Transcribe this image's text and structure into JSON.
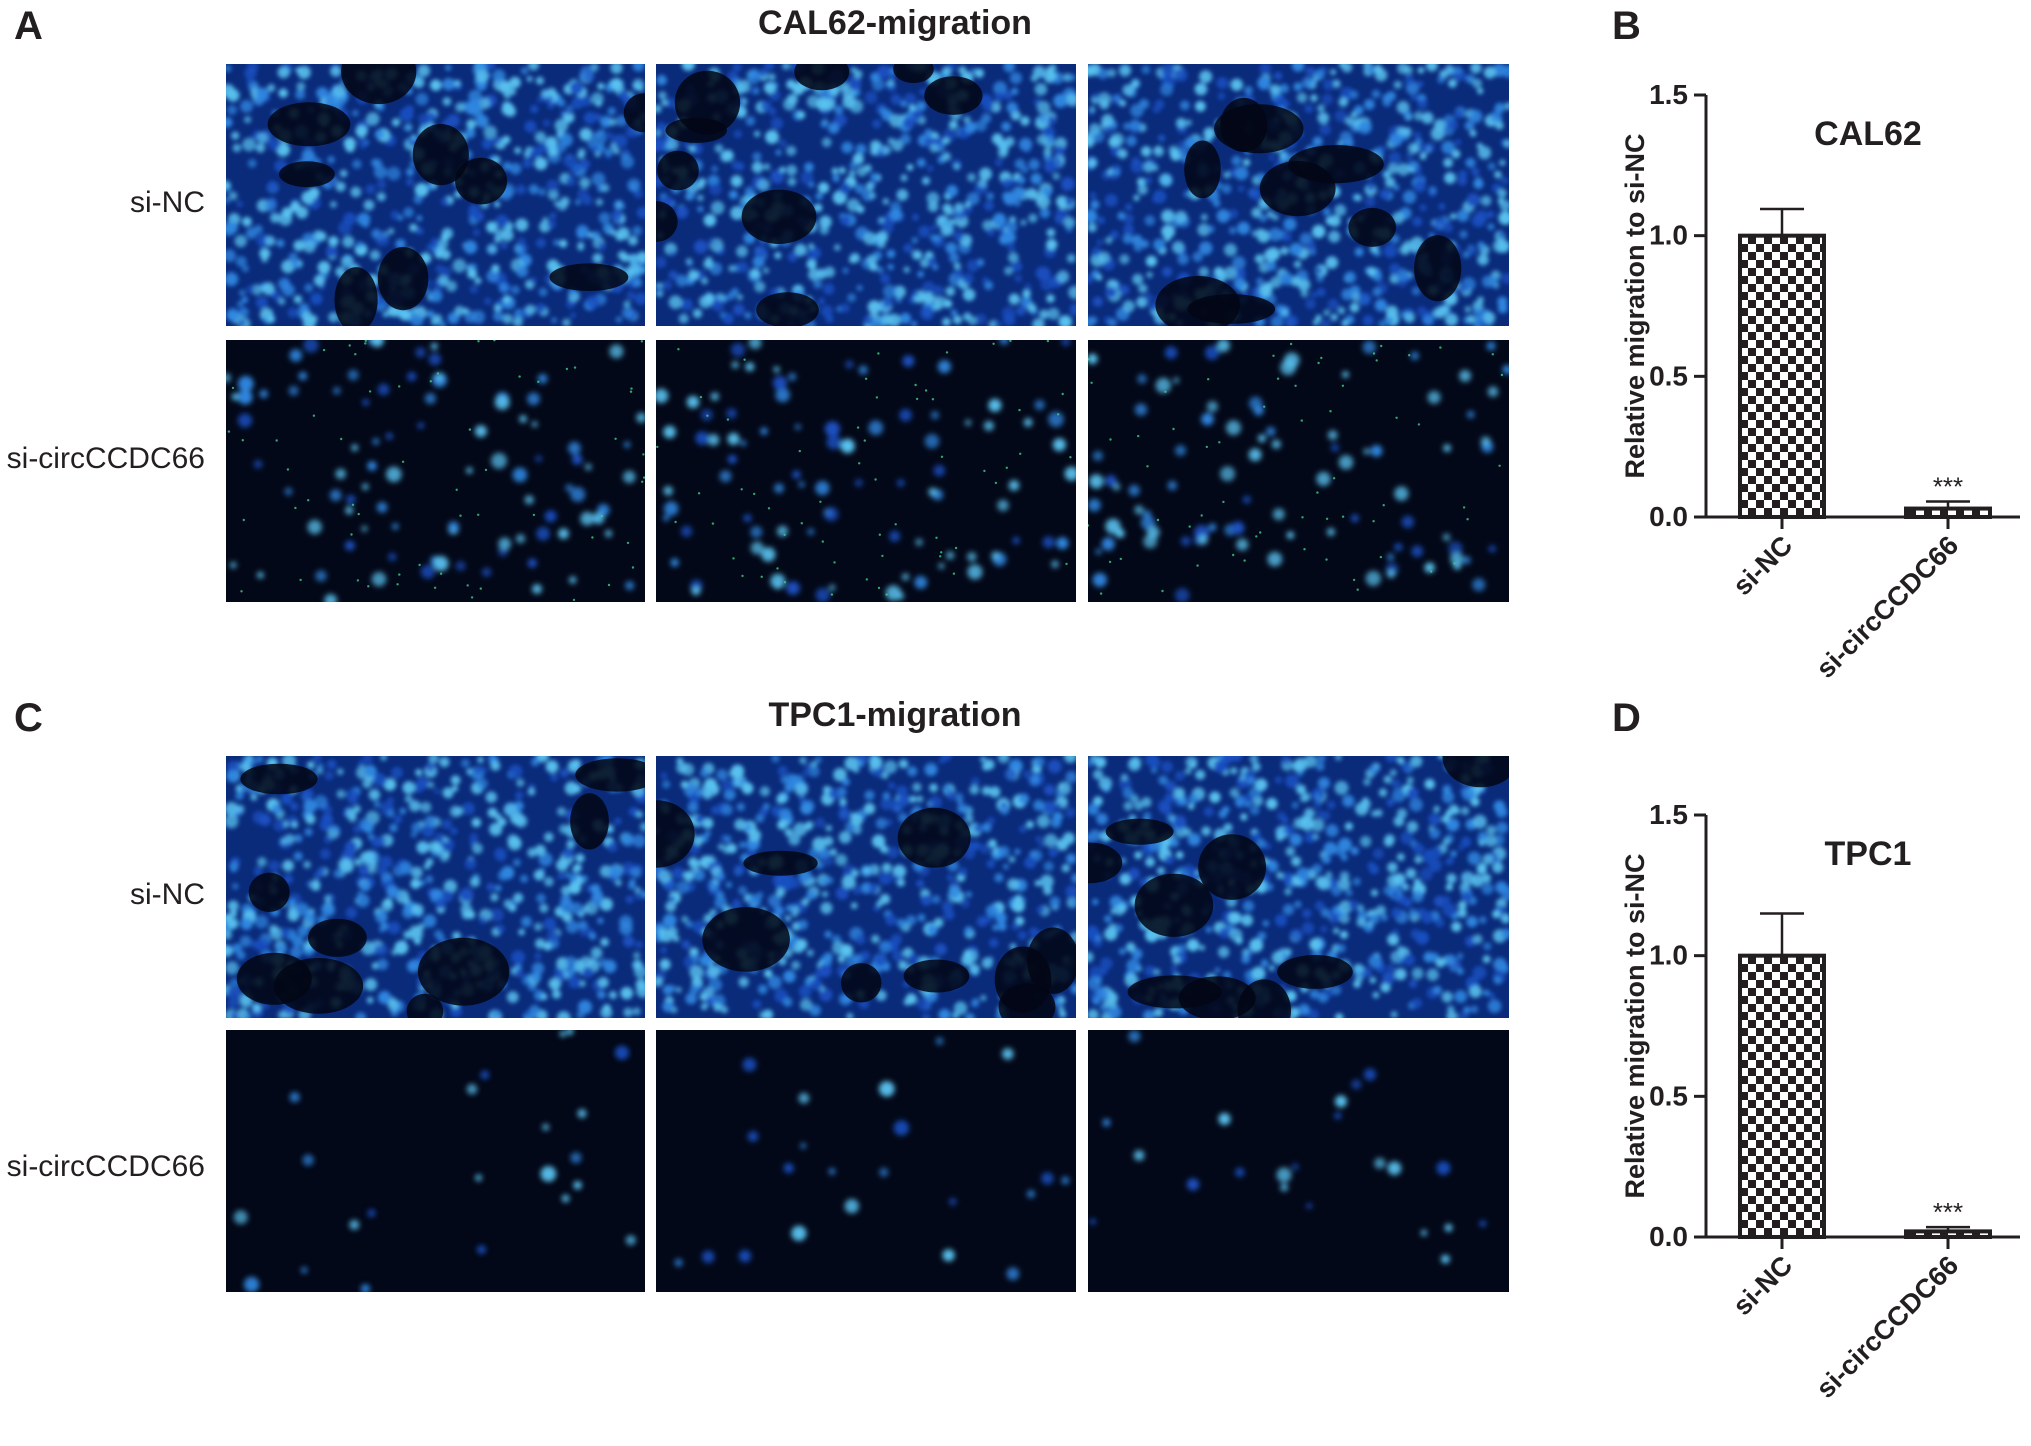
{
  "panels": {
    "A": "A",
    "B": "B",
    "C": "C",
    "D": "D"
  },
  "sections": [
    {
      "title": "CAL62-migration",
      "row_labels": [
        "si-NC",
        "si-circCCDC66"
      ]
    },
    {
      "title": "TPC1-migration",
      "row_labels": [
        "si-NC",
        "si-circCCDC66"
      ]
    }
  ],
  "colors": {
    "background_dark": "#030818",
    "nucleus_bright": "#4fb4e8",
    "nucleus_dim": "#1c5ad0",
    "axis": "#231f20"
  },
  "chart_data": [
    {
      "type": "bar",
      "title": "CAL62",
      "ylabel": "Relative migration to si-NC",
      "xlabel": "",
      "categories": [
        "si-NC",
        "si-circCCDC66"
      ],
      "values": [
        1.0,
        0.03
      ],
      "errors": [
        0.095,
        0.025
      ],
      "annotations": [
        "",
        "***"
      ],
      "ylim": [
        0,
        1.5
      ],
      "yticks": [
        "0.0",
        "0.5",
        "1.0",
        "1.5"
      ],
      "bar_fill": "checkerboard"
    },
    {
      "type": "bar",
      "title": "TPC1",
      "ylabel": "Relative migration to si-NC",
      "xlabel": "",
      "categories": [
        "si-NC",
        "si-circCCDC66"
      ],
      "values": [
        1.0,
        0.02
      ],
      "errors": [
        0.15,
        0.015
      ],
      "annotations": [
        "",
        "***"
      ],
      "ylim": [
        0,
        1.5
      ],
      "yticks": [
        "0.0",
        "0.5",
        "1.0",
        "1.5"
      ],
      "bar_fill": "checkerboard"
    }
  ]
}
